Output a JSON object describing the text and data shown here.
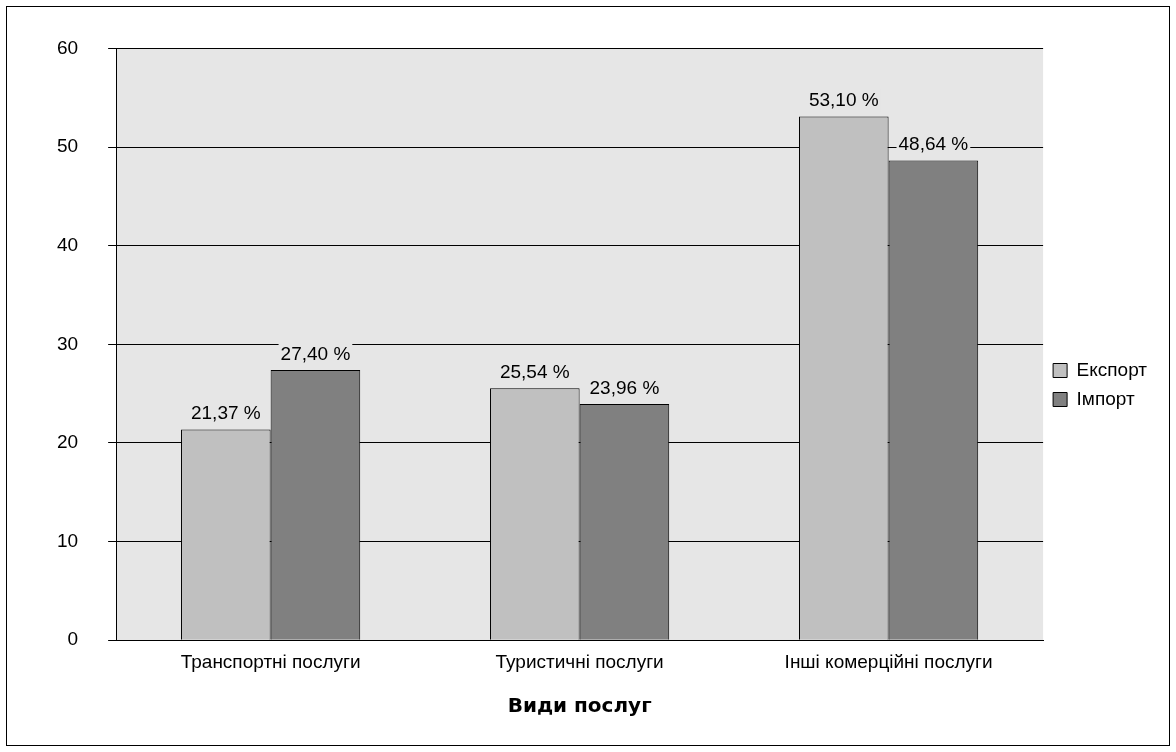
{
  "chart_data": {
    "type": "bar",
    "xlabel": "Види послуг",
    "categories": [
      "Транспортні послуги",
      "Туристичні послуги",
      "Інші комерційні послуги"
    ],
    "series": [
      {
        "name": "Експорт",
        "color": "#c0c0c0",
        "values": [
          21.37,
          25.54,
          53.1
        ],
        "value_labels": [
          "21,37 %",
          "25,54 %",
          "53,10 %"
        ]
      },
      {
        "name": "Імпорт",
        "color": "#808080",
        "values": [
          27.4,
          23.96,
          48.64
        ],
        "value_labels": [
          "27,40 %",
          "23,96 %",
          "48,64 %"
        ]
      }
    ],
    "ylim": [
      0,
      60
    ],
    "yticks": [
      0,
      10,
      20,
      30,
      40,
      50,
      60
    ],
    "grid": "y",
    "legend": "right"
  }
}
